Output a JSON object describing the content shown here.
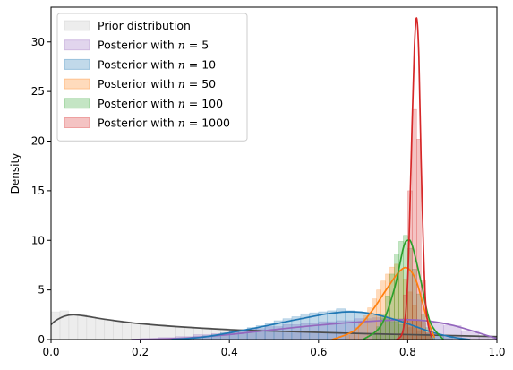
{
  "chart_data": {
    "type": "area",
    "title": "",
    "xlabel": "",
    "ylabel": "Density",
    "xlim": [
      0.0,
      1.0
    ],
    "ylim": [
      0,
      33.5
    ],
    "x_ticks": [
      "0.0",
      "0.2",
      "0.4",
      "0.6",
      "0.8",
      "1.0"
    ],
    "y_ticks": [
      "0",
      "5",
      "10",
      "15",
      "20",
      "25",
      "30"
    ],
    "grid": false,
    "legend_position": "top-left",
    "series": [
      {
        "name": "Prior distribution",
        "legend_prefix": "Prior distribution",
        "legend_n": "",
        "fill_color": "#bfbfbf",
        "line_color": "#4d4d4d",
        "kde": {
          "x": [
            0.0,
            0.01,
            0.03,
            0.05,
            0.08,
            0.12,
            0.2,
            0.3,
            0.4,
            0.5,
            0.6,
            0.7,
            0.8,
            0.9,
            1.0
          ],
          "y": [
            1.5,
            1.9,
            2.35,
            2.5,
            2.35,
            2.05,
            1.6,
            1.25,
            1.0,
            0.85,
            0.72,
            0.6,
            0.5,
            0.4,
            0.3
          ]
        },
        "hist": {
          "start": 0.0,
          "width": 0.02,
          "values": [
            2.8,
            2.9,
            2.4,
            2.5,
            2.3,
            2.1,
            2.0,
            1.9,
            1.8,
            1.7,
            1.6,
            1.5,
            1.4,
            1.4,
            1.3,
            1.3,
            1.2,
            1.2,
            1.1,
            1.1,
            1.0,
            1.0,
            1.0,
            0.9,
            0.9,
            0.9,
            0.85,
            0.8,
            0.8,
            0.8,
            0.75,
            0.7,
            0.7,
            0.7,
            0.65,
            0.6,
            0.6,
            0.6,
            0.55,
            0.55,
            0.5,
            0.5,
            0.5,
            0.45,
            0.45,
            0.4,
            0.4,
            0.35,
            0.35,
            0.3
          ]
        }
      },
      {
        "name": "Posterior with n = 5",
        "legend_prefix": "Posterior with ",
        "legend_n": "5",
        "fill_color": "#9467bd",
        "line_color": "#9467bd",
        "kde": {
          "x": [
            0.18,
            0.3,
            0.4,
            0.5,
            0.6,
            0.7,
            0.8,
            0.85,
            0.9,
            0.95,
            1.0
          ],
          "y": [
            0.0,
            0.15,
            0.5,
            1.0,
            1.45,
            1.8,
            2.0,
            1.85,
            1.45,
            0.8,
            0.1
          ]
        },
        "hist": {
          "start": 0.2,
          "width": 0.04,
          "values": [
            0.1,
            0.2,
            0.3,
            0.5,
            0.6,
            0.9,
            1.1,
            1.3,
            1.5,
            1.6,
            1.8,
            1.9,
            2.1,
            2.2,
            2.1,
            1.9,
            1.7,
            1.4,
            0.9,
            0.3
          ]
        }
      },
      {
        "name": "Posterior with n = 10",
        "legend_prefix": "Posterior with ",
        "legend_n": "10",
        "fill_color": "#1f77b4",
        "line_color": "#1f77b4",
        "kde": {
          "x": [
            0.27,
            0.35,
            0.45,
            0.55,
            0.62,
            0.67,
            0.72,
            0.78,
            0.85,
            0.9,
            0.94
          ],
          "y": [
            0.0,
            0.3,
            1.1,
            2.0,
            2.6,
            2.8,
            2.6,
            1.9,
            0.8,
            0.25,
            0.0
          ]
        },
        "hist": {
          "start": 0.3,
          "width": 0.02,
          "values": [
            0.2,
            0.3,
            0.4,
            0.5,
            0.7,
            0.9,
            1.0,
            1.2,
            1.4,
            1.6,
            1.9,
            2.1,
            2.3,
            2.6,
            2.7,
            2.8,
            2.9,
            3.1,
            2.9,
            2.8,
            2.6,
            2.4,
            2.1,
            1.8,
            1.5,
            1.2,
            0.9,
            0.6,
            0.4,
            0.2
          ]
        }
      },
      {
        "name": "Posterior with n = 50",
        "legend_prefix": "Posterior with ",
        "legend_n": "50",
        "fill_color": "#ff7f0e",
        "line_color": "#ff7f0e",
        "kde": {
          "x": [
            0.63,
            0.68,
            0.72,
            0.75,
            0.78,
            0.8,
            0.82,
            0.84,
            0.86
          ],
          "y": [
            0.0,
            0.9,
            2.9,
            4.9,
            6.8,
            7.2,
            5.8,
            2.6,
            0.2
          ]
        },
        "hist": {
          "start": 0.66,
          "width": 0.01,
          "values": [
            0.4,
            0.8,
            1.2,
            1.8,
            2.4,
            3.2,
            4.1,
            5.0,
            5.9,
            6.6,
            7.3,
            7.6,
            7.0,
            6.1,
            4.8,
            3.4,
            2.0,
            1.0,
            0.4
          ]
        }
      },
      {
        "name": "Posterior with n = 100",
        "legend_prefix": "Posterior with ",
        "legend_n": "100",
        "fill_color": "#2ca02c",
        "line_color": "#2ca02c",
        "kde": {
          "x": [
            0.7,
            0.74,
            0.77,
            0.79,
            0.8,
            0.81,
            0.83,
            0.85,
            0.88
          ],
          "y": [
            0.0,
            1.4,
            5.1,
            9.2,
            10.0,
            9.5,
            5.8,
            1.8,
            0.0
          ]
        },
        "hist": {
          "start": 0.72,
          "width": 0.01,
          "values": [
            0.5,
            1.3,
            2.6,
            4.4,
            6.6,
            8.6,
            9.9,
            10.5,
            9.2,
            7.1,
            4.6,
            2.6,
            1.2,
            0.4
          ]
        }
      },
      {
        "name": "Posterior with n = 1000",
        "legend_prefix": "Posterior with ",
        "legend_n": "1000",
        "fill_color": "#d62728",
        "line_color": "#d62728",
        "kde": {
          "x": [
            0.775,
            0.79,
            0.8,
            0.81,
            0.815,
            0.82,
            0.825,
            0.83,
            0.84,
            0.855
          ],
          "y": [
            0.0,
            1.0,
            6.0,
            22.0,
            29.5,
            32.4,
            28.5,
            18.0,
            3.8,
            0.0
          ]
        },
        "hist": {
          "start": 0.78,
          "width": 0.01,
          "values": [
            0.6,
            4.5,
            15.0,
            23.2,
            20.2,
            6.0,
            0.7
          ]
        }
      }
    ]
  }
}
